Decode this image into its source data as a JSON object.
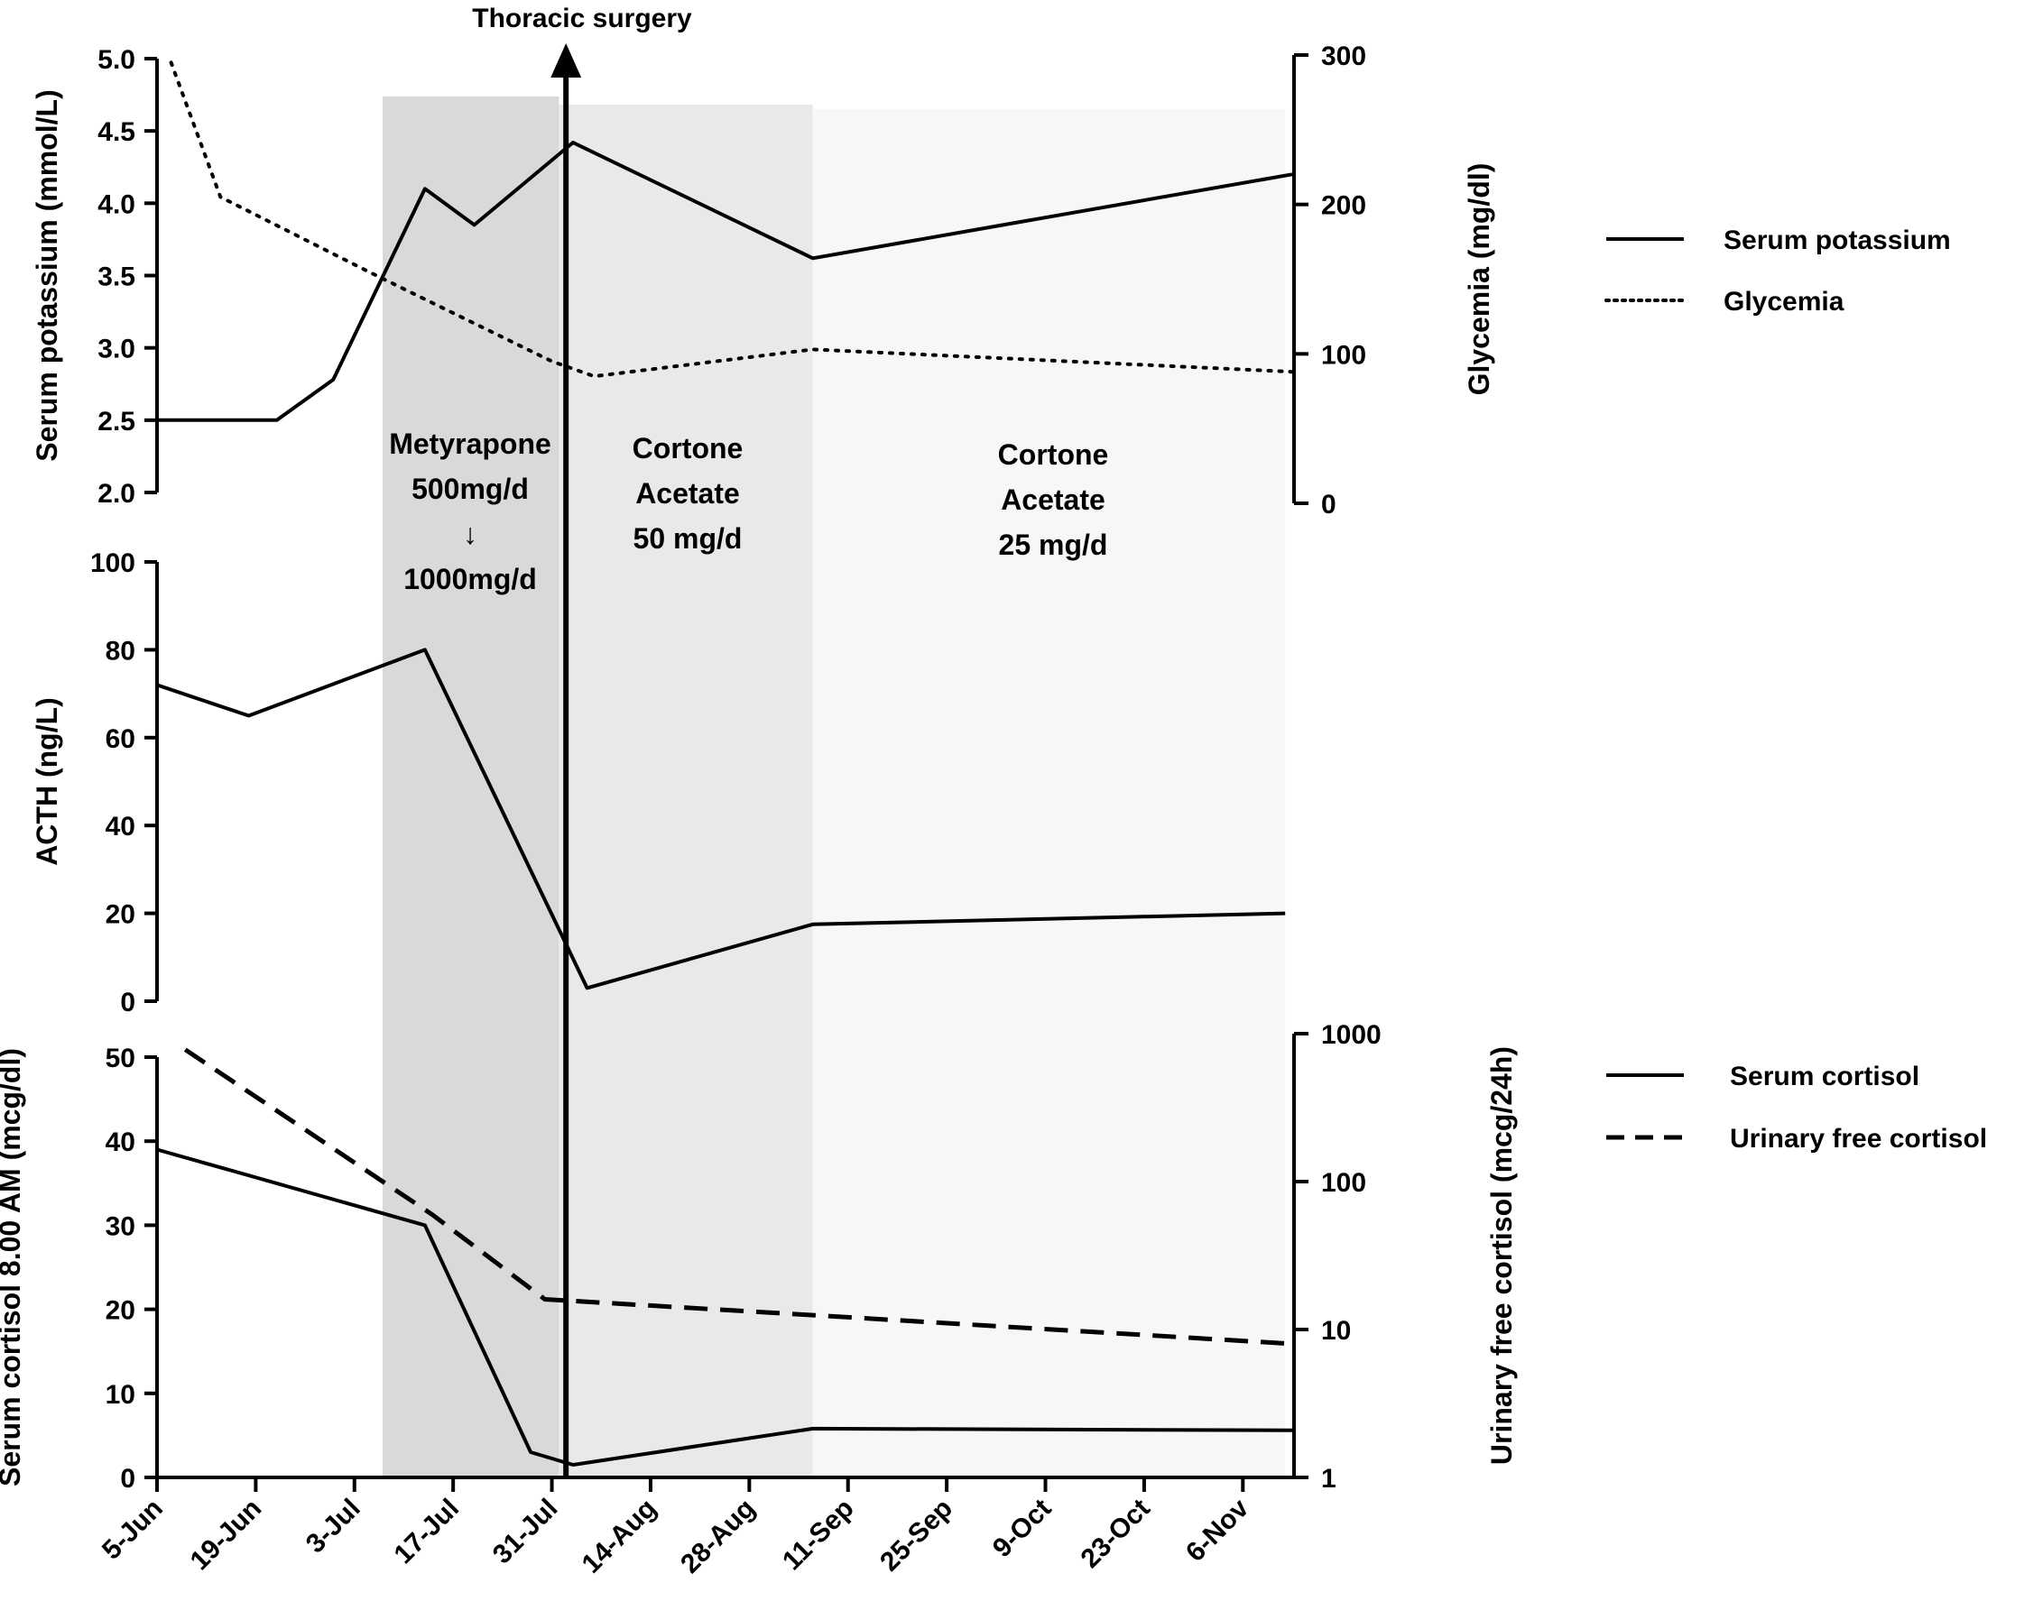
{
  "chart_data": {
    "type": "line",
    "colors": {
      "phase1": "#d9d9d9",
      "phase2": "#e9e9e9",
      "phase3": "#f7f7f7",
      "ink": "#000000"
    },
    "x_axis": {
      "unit": "days since 5-Jun",
      "range": [
        0,
        161
      ],
      "ticks": [
        {
          "label": "5-Jun",
          "day": 0
        },
        {
          "label": "19-Jun",
          "day": 14
        },
        {
          "label": "3-Jul",
          "day": 28
        },
        {
          "label": "17-Jul",
          "day": 42
        },
        {
          "label": "31-Jul",
          "day": 56
        },
        {
          "label": "14-Aug",
          "day": 70
        },
        {
          "label": "28-Aug",
          "day": 84
        },
        {
          "label": "11-Sep",
          "day": 98
        },
        {
          "label": "25-Sep",
          "day": 112
        },
        {
          "label": "9-Oct",
          "day": 126
        },
        {
          "label": "23-Oct",
          "day": 140
        },
        {
          "label": "6-Nov",
          "day": 154
        }
      ]
    },
    "phases": [
      {
        "name": "metyrapone",
        "start": 32,
        "end": 57,
        "lines": [
          "Metyrapone",
          "500mg/d",
          "↓",
          "1000mg/d"
        ]
      },
      {
        "name": "cortone-50",
        "start": 57,
        "end": 93,
        "lines": [
          "Cortone",
          "Acetate",
          "50 mg/d"
        ]
      },
      {
        "name": "cortone-25",
        "start": 93,
        "end": 160,
        "lines": [
          "Cortone",
          "Acetate",
          "25 mg/d"
        ]
      }
    ],
    "event": {
      "label": "Thoracic surgery",
      "day": 58
    },
    "panels": [
      {
        "name": "top",
        "left_axis": {
          "label": "Serum potassium (mmol/L)",
          "range": [
            2.0,
            5.0
          ],
          "ticks": [
            "2.0",
            "2.5",
            "3.0",
            "3.5",
            "4.0",
            "4.5",
            "5.0"
          ]
        },
        "right_axis": {
          "label": "Glycemia (mg/dl)",
          "range": [
            0,
            300
          ],
          "ticks": [
            "0",
            "100",
            "200",
            "300"
          ]
        },
        "series": [
          {
            "name": "Serum potassium",
            "axis": "left",
            "style": "solid",
            "x": [
              0,
              17,
              25,
              38,
              45,
              59,
              93,
              161
            ],
            "y": [
              2.5,
              2.5,
              2.78,
              4.1,
              3.85,
              4.42,
              3.62,
              4.2
            ]
          },
          {
            "name": "Glycemia",
            "axis": "right",
            "style": "dotted",
            "x": [
              2,
              9,
              30,
              56,
              62,
              93,
              161
            ],
            "y": [
              295,
              205,
              155,
              95,
              85,
              103,
              88
            ]
          }
        ],
        "legend": [
          "Serum potassium",
          "Glycemia"
        ]
      },
      {
        "name": "middle",
        "left_axis": {
          "label": "ACTH (ng/L)",
          "range": [
            0,
            100
          ],
          "ticks": [
            "0",
            "20",
            "40",
            "60",
            "80",
            "100"
          ]
        },
        "series": [
          {
            "name": "ACTH",
            "axis": "left",
            "style": "solid",
            "x": [
              0,
              13,
              38,
              61,
              93,
              160
            ],
            "y": [
              72,
              65,
              80,
              3,
              17.5,
              20
            ]
          }
        ]
      },
      {
        "name": "bottom",
        "left_axis": {
          "label": "Serum cortisol 8.00 AM (mcg/dl)",
          "range": [
            0,
            50
          ],
          "ticks": [
            "0",
            "10",
            "20",
            "30",
            "40",
            "50"
          ]
        },
        "right_axis": {
          "label": "Urinary free cortisol (mcg/24h)",
          "scale": "log",
          "range": [
            1,
            1000
          ],
          "ticks": [
            "1",
            "10",
            "100",
            "1000"
          ]
        },
        "series": [
          {
            "name": "Serum cortisol",
            "axis": "left",
            "style": "solid",
            "x": [
              0,
              38,
              53,
              59,
              93,
              161
            ],
            "y": [
              39,
              30,
              3,
              1.5,
              5.8,
              5.6
            ]
          },
          {
            "name": "Urinary free cortisol",
            "axis": "right",
            "style": "dashed",
            "x": [
              4,
              39,
              55,
              93,
              161
            ],
            "y": [
              780,
              60,
              16,
              12.5,
              8
            ]
          }
        ],
        "legend": [
          "Serum cortisol",
          "Urinary free cortisol"
        ]
      }
    ]
  }
}
